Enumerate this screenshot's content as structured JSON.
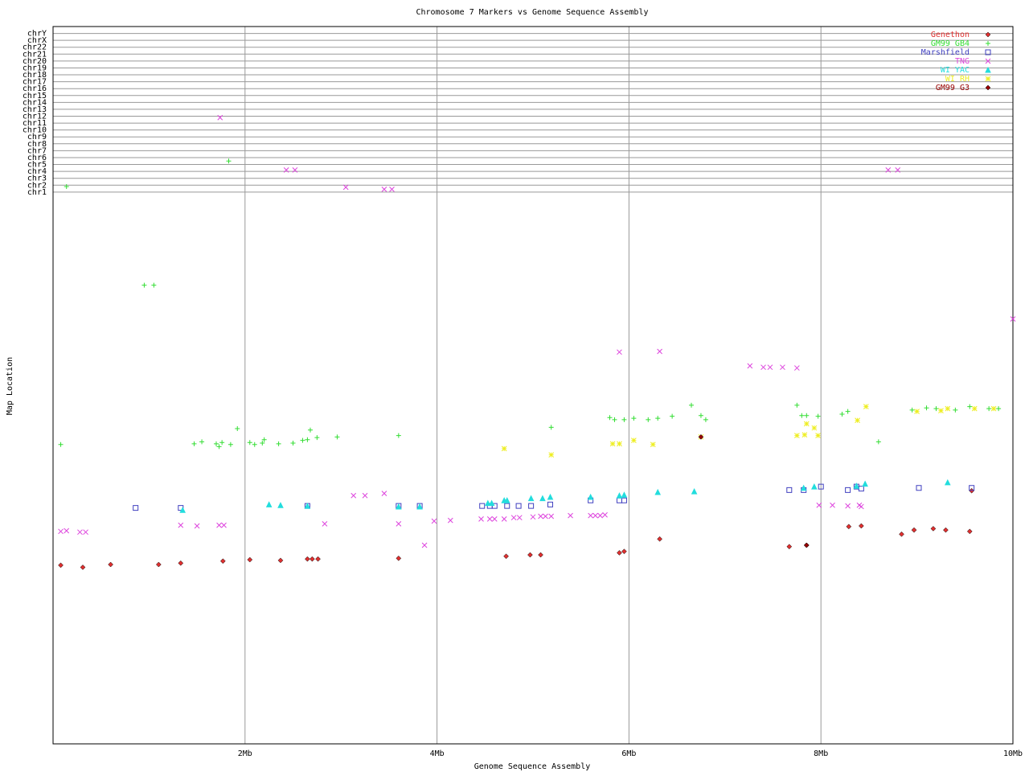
{
  "chart_data": {
    "type": "scatter",
    "title": "Chromosome 7 Markers vs Genome Sequence Assembly",
    "x_label": "Genome Sequence Assembly",
    "y_label": "Map Location",
    "xlim": [
      0,
      10
    ],
    "xticks": [
      {
        "value": 2,
        "label": "2Mb"
      },
      {
        "value": 4,
        "label": "4Mb"
      },
      {
        "value": 6,
        "label": "6Mb"
      },
      {
        "value": 8,
        "label": "8Mb"
      },
      {
        "value": 10,
        "label": "10Mb"
      }
    ],
    "ylim": [
      0,
      104
    ],
    "yticks": [
      {
        "value": 80,
        "label": "chr1"
      },
      {
        "value": 81,
        "label": "chr2"
      },
      {
        "value": 82,
        "label": "chr3"
      },
      {
        "value": 83,
        "label": "chr4"
      },
      {
        "value": 84,
        "label": "chr5"
      },
      {
        "value": 85,
        "label": "chr6"
      },
      {
        "value": 86,
        "label": "chr7"
      },
      {
        "value": 87,
        "label": "chr8"
      },
      {
        "value": 88,
        "label": "chr9"
      },
      {
        "value": 89,
        "label": "chr10"
      },
      {
        "value": 90,
        "label": "chr11"
      },
      {
        "value": 91,
        "label": "chr12"
      },
      {
        "value": 92,
        "label": "chr13"
      },
      {
        "value": 93,
        "label": "chr14"
      },
      {
        "value": 94,
        "label": "chr15"
      },
      {
        "value": 95,
        "label": "chr16"
      },
      {
        "value": 96,
        "label": "chr17"
      },
      {
        "value": 97,
        "label": "chr18"
      },
      {
        "value": 98,
        "label": "chr19"
      },
      {
        "value": 99,
        "label": "chr20"
      },
      {
        "value": 100,
        "label": "chr21"
      },
      {
        "value": 101,
        "label": "chr22"
      },
      {
        "value": 102,
        "label": "chrX"
      },
      {
        "value": 103,
        "label": "chrY"
      }
    ],
    "grid": true,
    "legend": "top-right",
    "series": [
      {
        "name": "Genethon",
        "color": "#e03030",
        "marker": "diamond",
        "x": [
          0.08,
          0.31,
          0.6,
          1.1,
          1.33,
          1.77,
          2.05,
          2.37,
          2.65,
          2.7,
          2.76,
          3.6,
          4.72,
          4.97,
          5.08,
          5.9,
          5.95,
          6.32,
          7.67,
          7.85,
          8.29,
          8.42,
          8.84,
          8.97,
          9.17,
          9.3,
          9.55,
          9.57
        ],
        "values": [
          25.9,
          25.6,
          26.0,
          26.0,
          26.2,
          26.5,
          26.7,
          26.6,
          26.8,
          26.8,
          26.8,
          26.9,
          27.2,
          27.4,
          27.4,
          27.7,
          27.9,
          29.7,
          28.6,
          28.8,
          31.5,
          31.6,
          30.4,
          31.0,
          31.2,
          31.0,
          30.8,
          36.7
        ]
      },
      {
        "name": "GM99 GB4",
        "color": "#33dd33",
        "marker": "plus",
        "x": [
          0.14,
          1.83,
          0.95,
          1.05,
          0.08,
          1.47,
          1.55,
          1.7,
          1.73,
          1.76,
          1.85,
          1.92,
          2.05,
          2.1,
          2.18,
          2.2,
          2.35,
          2.5,
          2.6,
          2.65,
          2.68,
          2.75,
          2.96,
          3.6,
          5.19,
          5.8,
          5.85,
          5.95,
          6.05,
          6.2,
          6.3,
          6.45,
          6.65,
          6.75,
          6.8,
          7.75,
          7.8,
          7.85,
          7.97,
          8.22,
          8.28,
          8.6,
          8.95,
          9.1,
          9.2,
          9.4,
          9.55,
          9.75,
          9.85
        ],
        "values": [
          80.8,
          84.5,
          66.5,
          66.5,
          43.4,
          43.5,
          43.8,
          43.5,
          43.1,
          43.7,
          43.4,
          45.7,
          43.7,
          43.4,
          43.6,
          44.1,
          43.5,
          43.6,
          44.0,
          44.1,
          45.5,
          44.4,
          44.5,
          44.7,
          45.9,
          47.3,
          47.0,
          47.0,
          47.2,
          47.0,
          47.2,
          47.5,
          49.1,
          47.6,
          47.0,
          49.1,
          47.6,
          47.6,
          47.5,
          47.8,
          48.2,
          43.8,
          48.4,
          48.7,
          48.6,
          48.4,
          48.9,
          48.6,
          48.6
        ]
      },
      {
        "name": "Marshfield",
        "color": "#4040c0",
        "marker": "square",
        "x": [
          0.86,
          1.33,
          2.65,
          3.6,
          3.82,
          4.47,
          4.55,
          4.6,
          4.73,
          4.85,
          4.98,
          5.18,
          5.6,
          5.9,
          5.95,
          7.67,
          7.82,
          8.0,
          8.28,
          8.37,
          8.42,
          9.02,
          9.57
        ],
        "values": [
          34.2,
          34.2,
          34.5,
          34.5,
          34.5,
          34.5,
          34.5,
          34.5,
          34.5,
          34.5,
          34.5,
          34.7,
          35.3,
          35.3,
          35.3,
          36.8,
          36.8,
          37.3,
          36.8,
          37.3,
          37.0,
          37.1,
          37.1
        ]
      },
      {
        "name": "TNG",
        "color": "#dd44dd",
        "marker": "x",
        "x": [
          1.74,
          2.43,
          2.52,
          3.05,
          3.45,
          3.53,
          8.7,
          8.8,
          5.9,
          6.32,
          7.26,
          7.4,
          7.47,
          7.6,
          7.75,
          10.0,
          0.08,
          0.14,
          0.28,
          0.34,
          1.33,
          1.5,
          1.73,
          1.78,
          2.83,
          3.13,
          3.25,
          3.45,
          3.6,
          3.87,
          3.97,
          4.14,
          4.46,
          4.55,
          4.6,
          4.7,
          4.8,
          4.86,
          5.0,
          5.08,
          5.13,
          5.19,
          5.39,
          5.6,
          5.65,
          5.7,
          5.75,
          7.98,
          8.12,
          8.28,
          8.4,
          8.42
        ],
        "values": [
          90.8,
          83.2,
          83.2,
          80.7,
          80.4,
          80.4,
          83.2,
          83.2,
          56.8,
          56.9,
          54.8,
          54.6,
          54.6,
          54.6,
          54.5,
          61.6,
          30.8,
          30.9,
          30.7,
          30.7,
          31.7,
          31.6,
          31.7,
          31.7,
          31.9,
          36.0,
          36.0,
          36.3,
          31.9,
          28.8,
          32.3,
          32.4,
          32.6,
          32.6,
          32.6,
          32.6,
          32.8,
          32.8,
          32.9,
          33.0,
          33.0,
          33.0,
          33.1,
          33.1,
          33.1,
          33.1,
          33.2,
          34.6,
          34.6,
          34.5,
          34.6,
          34.4
        ]
      },
      {
        "name": "WI YAC",
        "color": "#22dddd",
        "marker": "triangle",
        "x": [
          1.35,
          2.25,
          2.37,
          2.65,
          3.6,
          3.82,
          4.53,
          4.57,
          4.7,
          4.73,
          4.98,
          5.1,
          5.18,
          5.6,
          5.9,
          5.95,
          6.3,
          6.68,
          7.82,
          7.93,
          8.37,
          8.46,
          9.32
        ],
        "values": [
          33.9,
          34.7,
          34.6,
          34.5,
          34.4,
          34.4,
          34.9,
          34.9,
          35.3,
          35.3,
          35.6,
          35.6,
          35.8,
          35.8,
          36.0,
          36.1,
          36.5,
          36.6,
          37.1,
          37.3,
          37.4,
          37.7,
          37.9
        ]
      },
      {
        "name": "WI RH",
        "color": "#eeee22",
        "marker": "star",
        "x": [
          4.7,
          5.19,
          5.83,
          5.9,
          6.05,
          6.25,
          6.75,
          7.75,
          7.83,
          7.85,
          7.93,
          7.97,
          8.38,
          8.47,
          9.0,
          9.25,
          9.32,
          9.6,
          9.8
        ],
        "values": [
          42.8,
          41.9,
          43.5,
          43.5,
          44.0,
          43.4,
          44.5,
          44.7,
          44.8,
          46.4,
          45.8,
          44.7,
          46.9,
          48.9,
          48.2,
          48.3,
          48.6,
          48.6,
          48.6
        ]
      },
      {
        "name": "GM99 G3",
        "color": "#990000",
        "marker": "diamond",
        "x": [
          6.75,
          7.85
        ],
        "values": [
          44.5,
          28.8
        ]
      }
    ]
  }
}
